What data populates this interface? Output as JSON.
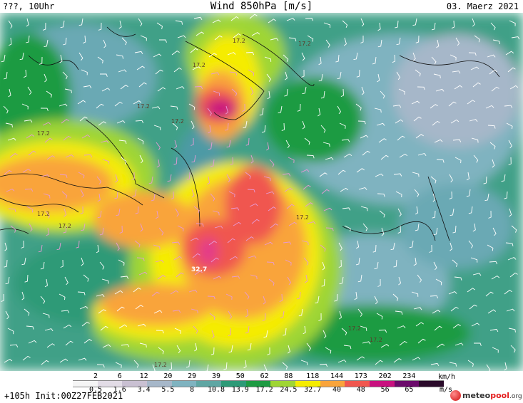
{
  "header": {
    "left": "???, 10Uhr",
    "title": "Wind 850hPa [m/s]",
    "right": "03. Maerz 2021"
  },
  "map": {
    "labels": [
      "17.2",
      "17.2",
      "17.2",
      "17.2",
      "17.2",
      "17.2",
      "17.2",
      "17.2",
      "17.2",
      "17.2",
      "17.2",
      "32.7",
      "17.2"
    ]
  },
  "legend": {
    "kmh_ticks": [
      "2",
      "6",
      "12",
      "20",
      "29",
      "39",
      "50",
      "62",
      "88",
      "118",
      "144",
      "173",
      "202",
      "234"
    ],
    "kmh_unit": "km/h",
    "ms_ticks": [
      "0.5",
      "1.6",
      "3.4",
      "5.5",
      "8",
      "10.8",
      "13.9",
      "17.2",
      "24.5",
      "32.7",
      "40",
      "48",
      "56",
      "65"
    ],
    "ms_unit": "m/s",
    "colors": [
      "#f5f5f5",
      "#e2dce6",
      "#c9c0d2",
      "#a6b7c9",
      "#7fb3c0",
      "#5fa6a3",
      "#2d9a77",
      "#1e9b43",
      "#9fd534",
      "#f5ec00",
      "#f9a43b",
      "#f0574f",
      "#c8117f",
      "#6b0a6b",
      "#2a0a2a"
    ]
  },
  "footer": {
    "init": "+105h Init:00Z27FEB2021",
    "brand_a": "meteo",
    "brand_b": "pool",
    "brand_c": ".org"
  }
}
